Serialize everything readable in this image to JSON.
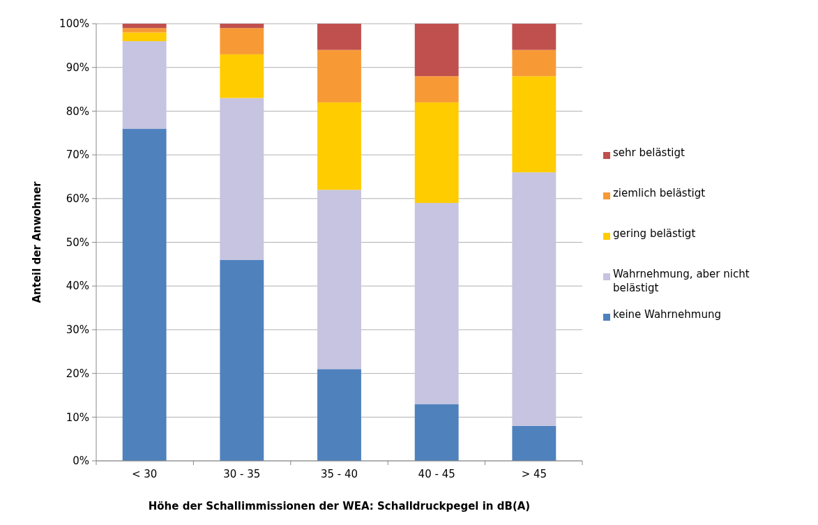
{
  "chart_data": {
    "type": "bar",
    "stacked": true,
    "xlabel": "Höhe der Schallimmissionen der WEA: Schalldruckpegel in dB(A)",
    "ylabel": "Anteil der Anwohner",
    "categories": [
      "< 30",
      "30 - 35",
      "35 - 40",
      "40 - 45",
      "> 45"
    ],
    "series": [
      {
        "name": "keine Wahrnehmung",
        "color": "#4f81bd",
        "values": [
          76,
          46,
          21,
          13,
          8
        ]
      },
      {
        "name": "Wahrnehmung, aber nicht belästigt",
        "color": "#c6c4e0",
        "values": [
          20,
          37,
          41,
          46,
          58
        ]
      },
      {
        "name": "gering belästigt",
        "color": "#ffcc00",
        "values": [
          2,
          10,
          20,
          23,
          22
        ]
      },
      {
        "name": "ziemlich belästigt",
        "color": "#f79a36",
        "values": [
          1,
          6,
          12,
          6,
          6
        ]
      },
      {
        "name": "sehr belästigt",
        "color": "#c0504d",
        "values": [
          1,
          1,
          6,
          12,
          6
        ]
      }
    ],
    "ylim": [
      0,
      100
    ],
    "yticks": [
      {
        "value": 0,
        "label": "0%"
      },
      {
        "value": 10,
        "label": "10%"
      },
      {
        "value": 20,
        "label": "20%"
      },
      {
        "value": 30,
        "label": "30%"
      },
      {
        "value": 40,
        "label": "40%"
      },
      {
        "value": 50,
        "label": "50%"
      },
      {
        "value": 60,
        "label": "60%"
      },
      {
        "value": 70,
        "label": "70%"
      },
      {
        "value": 80,
        "label": "80%"
      },
      {
        "value": 90,
        "label": "90%"
      },
      {
        "value": 100,
        "label": "100%"
      }
    ],
    "grid": "y",
    "legend": "right"
  }
}
